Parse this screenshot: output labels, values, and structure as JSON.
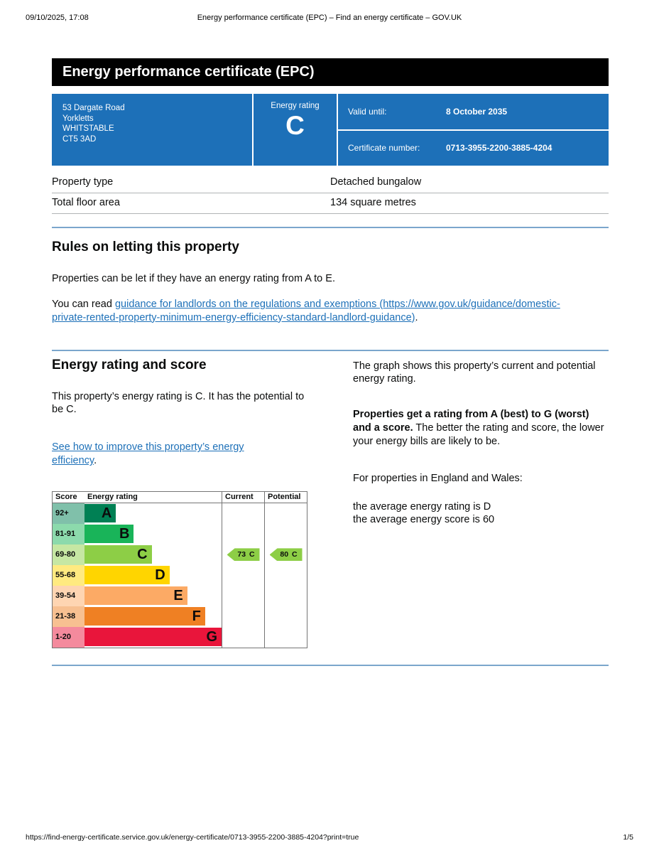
{
  "print_header": {
    "datetime": "09/10/2025, 17:08",
    "title": "Energy performance certificate (EPC) – Find an energy certificate – GOV.UK"
  },
  "banner": {
    "title": "Energy performance certificate (EPC)"
  },
  "summary": {
    "address_lines": [
      "53 Dargate Road",
      "Yorkletts",
      "WHITSTABLE",
      "CT5 3AD"
    ],
    "rating_label": "Energy rating",
    "rating_letter": "C",
    "valid_until_label": "Valid until:",
    "valid_until_value": "8 October 2035",
    "certificate_number_label": "Certificate number:",
    "certificate_number_value": "0713-3955-2200-3885-4204"
  },
  "property_table": {
    "rows": [
      {
        "label": "Property type",
        "value": "Detached bungalow"
      },
      {
        "label": "Total floor area",
        "value": "134 square metres"
      }
    ]
  },
  "rules_section": {
    "heading": "Rules on letting this property",
    "paragraph1": "Properties can be let if they have an energy rating from A to E.",
    "paragraph2_prefix": "You can read ",
    "paragraph2_link": "guidance for landlords on the regulations and exemptions (https://www.gov.uk/guidance/domestic-private-rented-property-minimum-energy-efficiency-standard-landlord-guidance)",
    "paragraph2_suffix": "."
  },
  "rating_section": {
    "heading": "Energy rating and score",
    "paragraph1": "This property’s energy rating is C. It has the potential to be C.",
    "improve_link": "See how to improve this property’s energy efficiency",
    "improve_suffix": ".",
    "right": {
      "paragraph1": "The graph shows this property’s current and potential energy rating.",
      "paragraph2_bold": "Properties get a rating from A (best) to G (worst) and a score.",
      "paragraph2_rest": " The better the rating and score, the lower your energy bills are likely to be.",
      "paragraph3": "For properties in England and Wales:",
      "average_line1": "the average energy rating is D",
      "average_line2": "the average energy score is 60"
    }
  },
  "chart_data": {
    "type": "bar",
    "headers": [
      "Score",
      "Energy rating",
      "Current",
      "Potential"
    ],
    "bands": [
      {
        "score": "92+",
        "letter": "A",
        "color": "#008054",
        "tint": "#80c0aa",
        "width_pct": 23
      },
      {
        "score": "81-91",
        "letter": "B",
        "color": "#19b459",
        "tint": "#8cdaac",
        "width_pct": 36
      },
      {
        "score": "69-80",
        "letter": "C",
        "color": "#8dce46",
        "tint": "#c6e7a3",
        "width_pct": 49
      },
      {
        "score": "55-68",
        "letter": "D",
        "color": "#ffd500",
        "tint": "#ffea80",
        "width_pct": 62
      },
      {
        "score": "39-54",
        "letter": "E",
        "color": "#fcaa65",
        "tint": "#fed5b2",
        "width_pct": 75
      },
      {
        "score": "21-38",
        "letter": "F",
        "color": "#ef8023",
        "tint": "#f7c091",
        "width_pct": 88
      },
      {
        "score": "1-20",
        "letter": "G",
        "color": "#e9153b",
        "tint": "#f48a9d",
        "width_pct": 100
      }
    ],
    "current": {
      "value": "73",
      "letter": "C",
      "band_index": 2,
      "color": "#8dce46"
    },
    "potential": {
      "value": "80",
      "letter": "C",
      "band_index": 2,
      "color": "#8dce46"
    }
  },
  "colors": {
    "govuk_blue": "#1d70b8",
    "banner_black": "#000000",
    "divider_blue": "#7ba6cc"
  },
  "footer": {
    "url": "https://find-energy-certificate.service.gov.uk/energy-certificate/0713-3955-2200-3885-4204?print=true",
    "page": "1/5"
  }
}
